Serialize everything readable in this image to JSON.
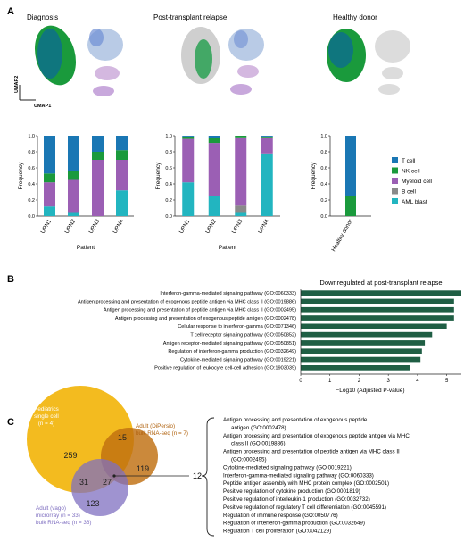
{
  "panels": {
    "a": "A",
    "b": "B",
    "c": "C"
  },
  "umap": {
    "titles": [
      "Diagnosis",
      "Post-transplant relapse",
      "Healthy donor"
    ],
    "xlabel": "UMAP1",
    "ylabel": "UMAP2"
  },
  "colors": {
    "T cell": "#1a77b4",
    "NK cell": "#1a9a3c",
    "Myeloid cell": "#9b5fb4",
    "B cell": "#8a8a8a",
    "AML blast": "#22b5c0",
    "bar_b": "#1f5e44",
    "pediatrics": "#f2b50c",
    "dipersio": "#c06f10",
    "vago": "#7f6fc0"
  },
  "chart_data": [
    {
      "type": "bar",
      "stacked": true,
      "categories": [
        "UPN1",
        "UPN2",
        "UPN3",
        "UPN4"
      ],
      "xlabel": "Patient",
      "ylabel": "Frequency",
      "ylim": [
        0,
        1
      ],
      "yticks": [
        "0.0",
        "0.2",
        "0.4",
        "0.6",
        "0.8",
        "1.0"
      ],
      "series": [
        {
          "name": "AML blast",
          "values": [
            0.12,
            0.05,
            0.0,
            0.32
          ]
        },
        {
          "name": "B cell",
          "values": [
            0.0,
            0.0,
            0.0,
            0.0
          ]
        },
        {
          "name": "Myeloid cell",
          "values": [
            0.3,
            0.4,
            0.7,
            0.38
          ]
        },
        {
          "name": "NK cell",
          "values": [
            0.11,
            0.11,
            0.1,
            0.12
          ]
        },
        {
          "name": "T cell",
          "values": [
            0.47,
            0.44,
            0.2,
            0.18
          ]
        }
      ]
    },
    {
      "type": "bar",
      "stacked": true,
      "categories": [
        "UPN1",
        "UPN2",
        "UPN3",
        "UPN4"
      ],
      "xlabel": "Patient",
      "ylabel": "Frequency",
      "ylim": [
        0,
        1
      ],
      "yticks": [
        "0.0",
        "0.2",
        "0.4",
        "0.6",
        "0.8",
        "1.0"
      ],
      "series": [
        {
          "name": "AML blast",
          "values": [
            0.42,
            0.25,
            0.05,
            0.78
          ]
        },
        {
          "name": "B cell",
          "values": [
            0.0,
            0.0,
            0.08,
            0.0
          ]
        },
        {
          "name": "Myeloid cell",
          "values": [
            0.54,
            0.66,
            0.85,
            0.2
          ]
        },
        {
          "name": "NK cell",
          "values": [
            0.03,
            0.06,
            0.02,
            0.01
          ]
        },
        {
          "name": "T cell",
          "values": [
            0.01,
            0.03,
            0.0,
            0.01
          ]
        }
      ]
    },
    {
      "type": "bar",
      "stacked": true,
      "categories": [
        "Healthy donor"
      ],
      "ylabel": "Frequency",
      "ylim": [
        0,
        1
      ],
      "yticks": [
        "0.0",
        "0.2",
        "0.4",
        "0.6",
        "0.8",
        "1.0"
      ],
      "series": [
        {
          "name": "AML blast",
          "values": [
            0.0
          ]
        },
        {
          "name": "B cell",
          "values": [
            0.0
          ]
        },
        {
          "name": "Myeloid cell",
          "values": [
            0.0
          ]
        },
        {
          "name": "NK cell",
          "values": [
            0.25
          ]
        },
        {
          "name": "T cell",
          "values": [
            0.75
          ]
        }
      ]
    },
    {
      "type": "bar",
      "orientation": "horizontal",
      "title": "Downregulated at post-transplant relapse",
      "xlabel": "−Log10 (Adjusted P-value)",
      "xlim": [
        0,
        5.5
      ],
      "xticks": [
        "0",
        "1",
        "2",
        "3",
        "4",
        "5"
      ],
      "categories": [
        "Interferon-gamma-mediated signaling pathway (GO:0060333)",
        "Antigen processing and presentation of exogenous peptide antigen via MHC class II (GO:0019886)",
        "Antigen processing and presentation of peptide antigen via MHC class II (GO:0002495)",
        "Antigen processing and presentation of exogenous peptide antigen (GO:0002478)",
        "Cellular response to interferon-gamma (GO:0071346)",
        "T cell receptor signaling pathway (GO:0050852)",
        "Antigen receptor-mediated signaling pathway (GO:0050851)",
        "Regulation of interferon-gamma production (GO:0032649)",
        "Cytokine-mediated signaling pathway (GO:0019221)",
        "Positive regulation of leukocyte cell-cell adhesion (GO:1903039)"
      ],
      "values": [
        5.5,
        5.25,
        5.25,
        5.25,
        5.0,
        4.5,
        4.25,
        4.15,
        4.1,
        3.75
      ]
    }
  ],
  "venn": {
    "sets": [
      {
        "key": "pediatrics",
        "lines": [
          "Pediatrics",
          "single cell",
          "(n = 4)"
        ]
      },
      {
        "key": "dipersio",
        "lines": [
          "Adult (DiPersio)",
          "bulk RNA-seq (n = 7)"
        ]
      },
      {
        "key": "vago",
        "lines": [
          "Adult (vago)",
          "microrray (n = 33)",
          "bulk RNA-seq (n = 36)"
        ]
      }
    ],
    "counts": {
      "ped_only": "259",
      "ped_dip": "15",
      "dip_only": "119",
      "ped_vago": "31",
      "all_three": "27",
      "vago_only": "123"
    },
    "callout": "12",
    "pathways": [
      "Antigen processing and presentation of exogenous peptide",
      "antigen (GO:0002478)",
      "Antigen processing and presentation of exogenous peptide antigen via MHC",
      "class II (GO:0019886)",
      "Antigen processing and presentation of peptide antigen via MHC class II",
      "(GO:0002495)",
      "Cytokine-mediated signaling pathway (GO:0019221)",
      "Interferon-gamma-mediated signaling pathway (GO:0060333)",
      "Peptide antigen assembly with MHC protein complex (GO:0002501)",
      "Positive regulation of cytokine production (GO:0001819)",
      "Positive regulation of interleukin-1 production (GO:0032732)",
      "Positive regulation of regulatory T cell differentiation (GO:0045591)",
      "Regulation of immune response (GO:0050776)",
      "Regulation of interferon-gamma production (GO:0032649)",
      "Regulation T cell proliferation (GO:0042129)"
    ]
  }
}
